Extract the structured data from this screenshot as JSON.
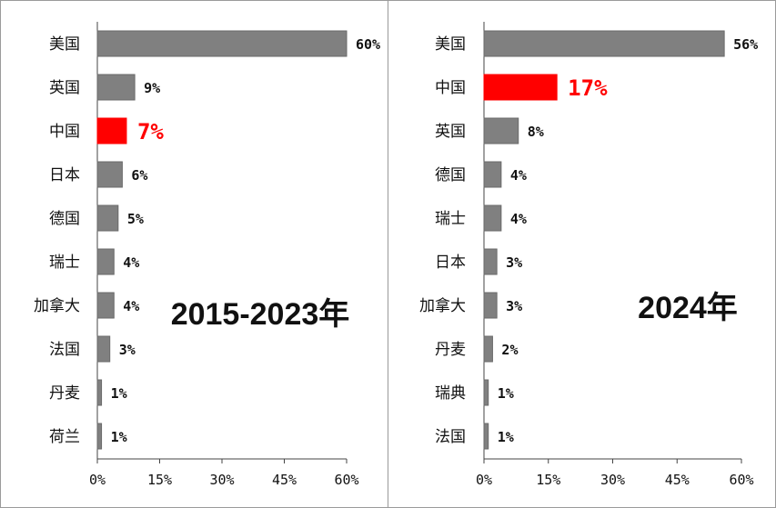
{
  "colors": {
    "bar": "#808080",
    "highlight": "#ff0000",
    "axis": "#444444",
    "text": "#111111"
  },
  "chart_data": [
    {
      "type": "bar",
      "orientation": "horizontal",
      "period_label": "2015-2023年",
      "highlight_category": "中国",
      "categories": [
        "美国",
        "英国",
        "中国",
        "日本",
        "德国",
        "瑞士",
        "加拿大",
        "法国",
        "丹麦",
        "荷兰"
      ],
      "values": [
        60,
        9,
        7,
        6,
        5,
        4,
        4,
        3,
        1,
        1
      ],
      "value_labels": [
        "60%",
        "9%",
        "7%",
        "6%",
        "5%",
        "4%",
        "4%",
        "3%",
        "1%",
        "1%"
      ],
      "xlim": [
        0,
        60
      ],
      "x_ticks": [
        "0%",
        "15%",
        "30%",
        "45%",
        "60%"
      ],
      "grid": false,
      "legend": "none"
    },
    {
      "type": "bar",
      "orientation": "horizontal",
      "period_label": "2024年",
      "highlight_category": "中国",
      "categories": [
        "美国",
        "中国",
        "英国",
        "德国",
        "瑞士",
        "日本",
        "加拿大",
        "丹麦",
        "瑞典",
        "法国"
      ],
      "values": [
        56,
        17,
        8,
        4,
        4,
        3,
        3,
        2,
        1,
        1
      ],
      "value_labels": [
        "56%",
        "17%",
        "8%",
        "4%",
        "4%",
        "3%",
        "3%",
        "2%",
        "1%",
        "1%"
      ],
      "xlim": [
        0,
        60
      ],
      "x_ticks": [
        "0%",
        "15%",
        "30%",
        "45%",
        "60%"
      ],
      "grid": false,
      "legend": "none"
    }
  ]
}
